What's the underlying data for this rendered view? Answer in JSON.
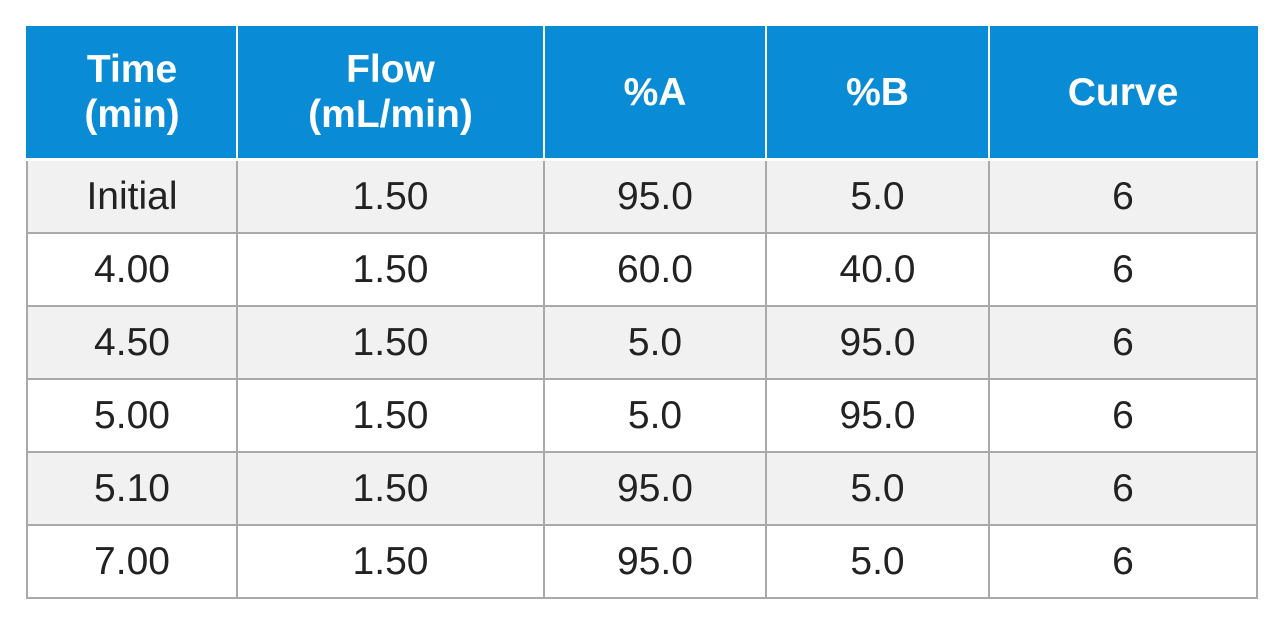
{
  "table": {
    "headers": [
      {
        "line1": "Time",
        "line2": "(min)"
      },
      {
        "line1": "Flow",
        "line2": "(mL/min)"
      },
      {
        "line1": "%A",
        "line2": ""
      },
      {
        "line1": "%B",
        "line2": ""
      },
      {
        "line1": "Curve",
        "line2": ""
      }
    ],
    "rows": [
      [
        "Initial",
        "1.50",
        "95.0",
        "5.0",
        "6"
      ],
      [
        "4.00",
        "1.50",
        "60.0",
        "40.0",
        "6"
      ],
      [
        "4.50",
        "1.50",
        "5.0",
        "95.0",
        "6"
      ],
      [
        "5.00",
        "1.50",
        "5.0",
        "95.0",
        "6"
      ],
      [
        "5.10",
        "1.50",
        "95.0",
        "5.0",
        "6"
      ],
      [
        "7.00",
        "1.50",
        "95.0",
        "5.0",
        "6"
      ]
    ]
  },
  "colors": {
    "header_bg": "#0a8bd6",
    "header_text": "#ffffff",
    "row_shade": "#f1f1f2",
    "grid_line": "#a9a9a9"
  }
}
